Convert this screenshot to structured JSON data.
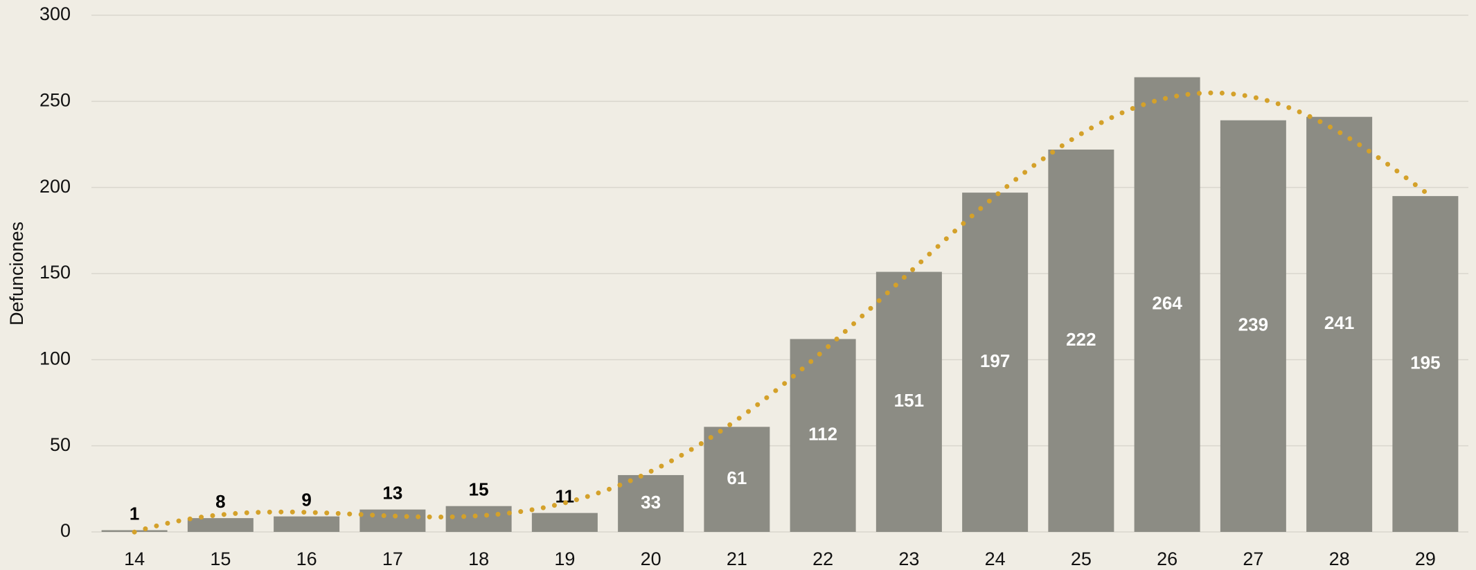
{
  "chart_data": {
    "type": "bar",
    "y_label": "Defunciones",
    "categories": [
      "14",
      "15",
      "16",
      "17",
      "18",
      "19",
      "20",
      "21",
      "22",
      "23",
      "24",
      "25",
      "26",
      "27",
      "28",
      "29"
    ],
    "values": [
      1,
      8,
      9,
      13,
      15,
      11,
      33,
      61,
      112,
      151,
      197,
      222,
      264,
      239,
      241,
      195
    ],
    "color": "#8c8c84",
    "ylim": [
      0,
      300
    ],
    "yticks": [
      0,
      50,
      100,
      150,
      200,
      250,
      300
    ],
    "grid": true,
    "trendline": {
      "kind": "polynomial",
      "order": 6,
      "color": "#d4a12a",
      "style": "dotted"
    }
  }
}
